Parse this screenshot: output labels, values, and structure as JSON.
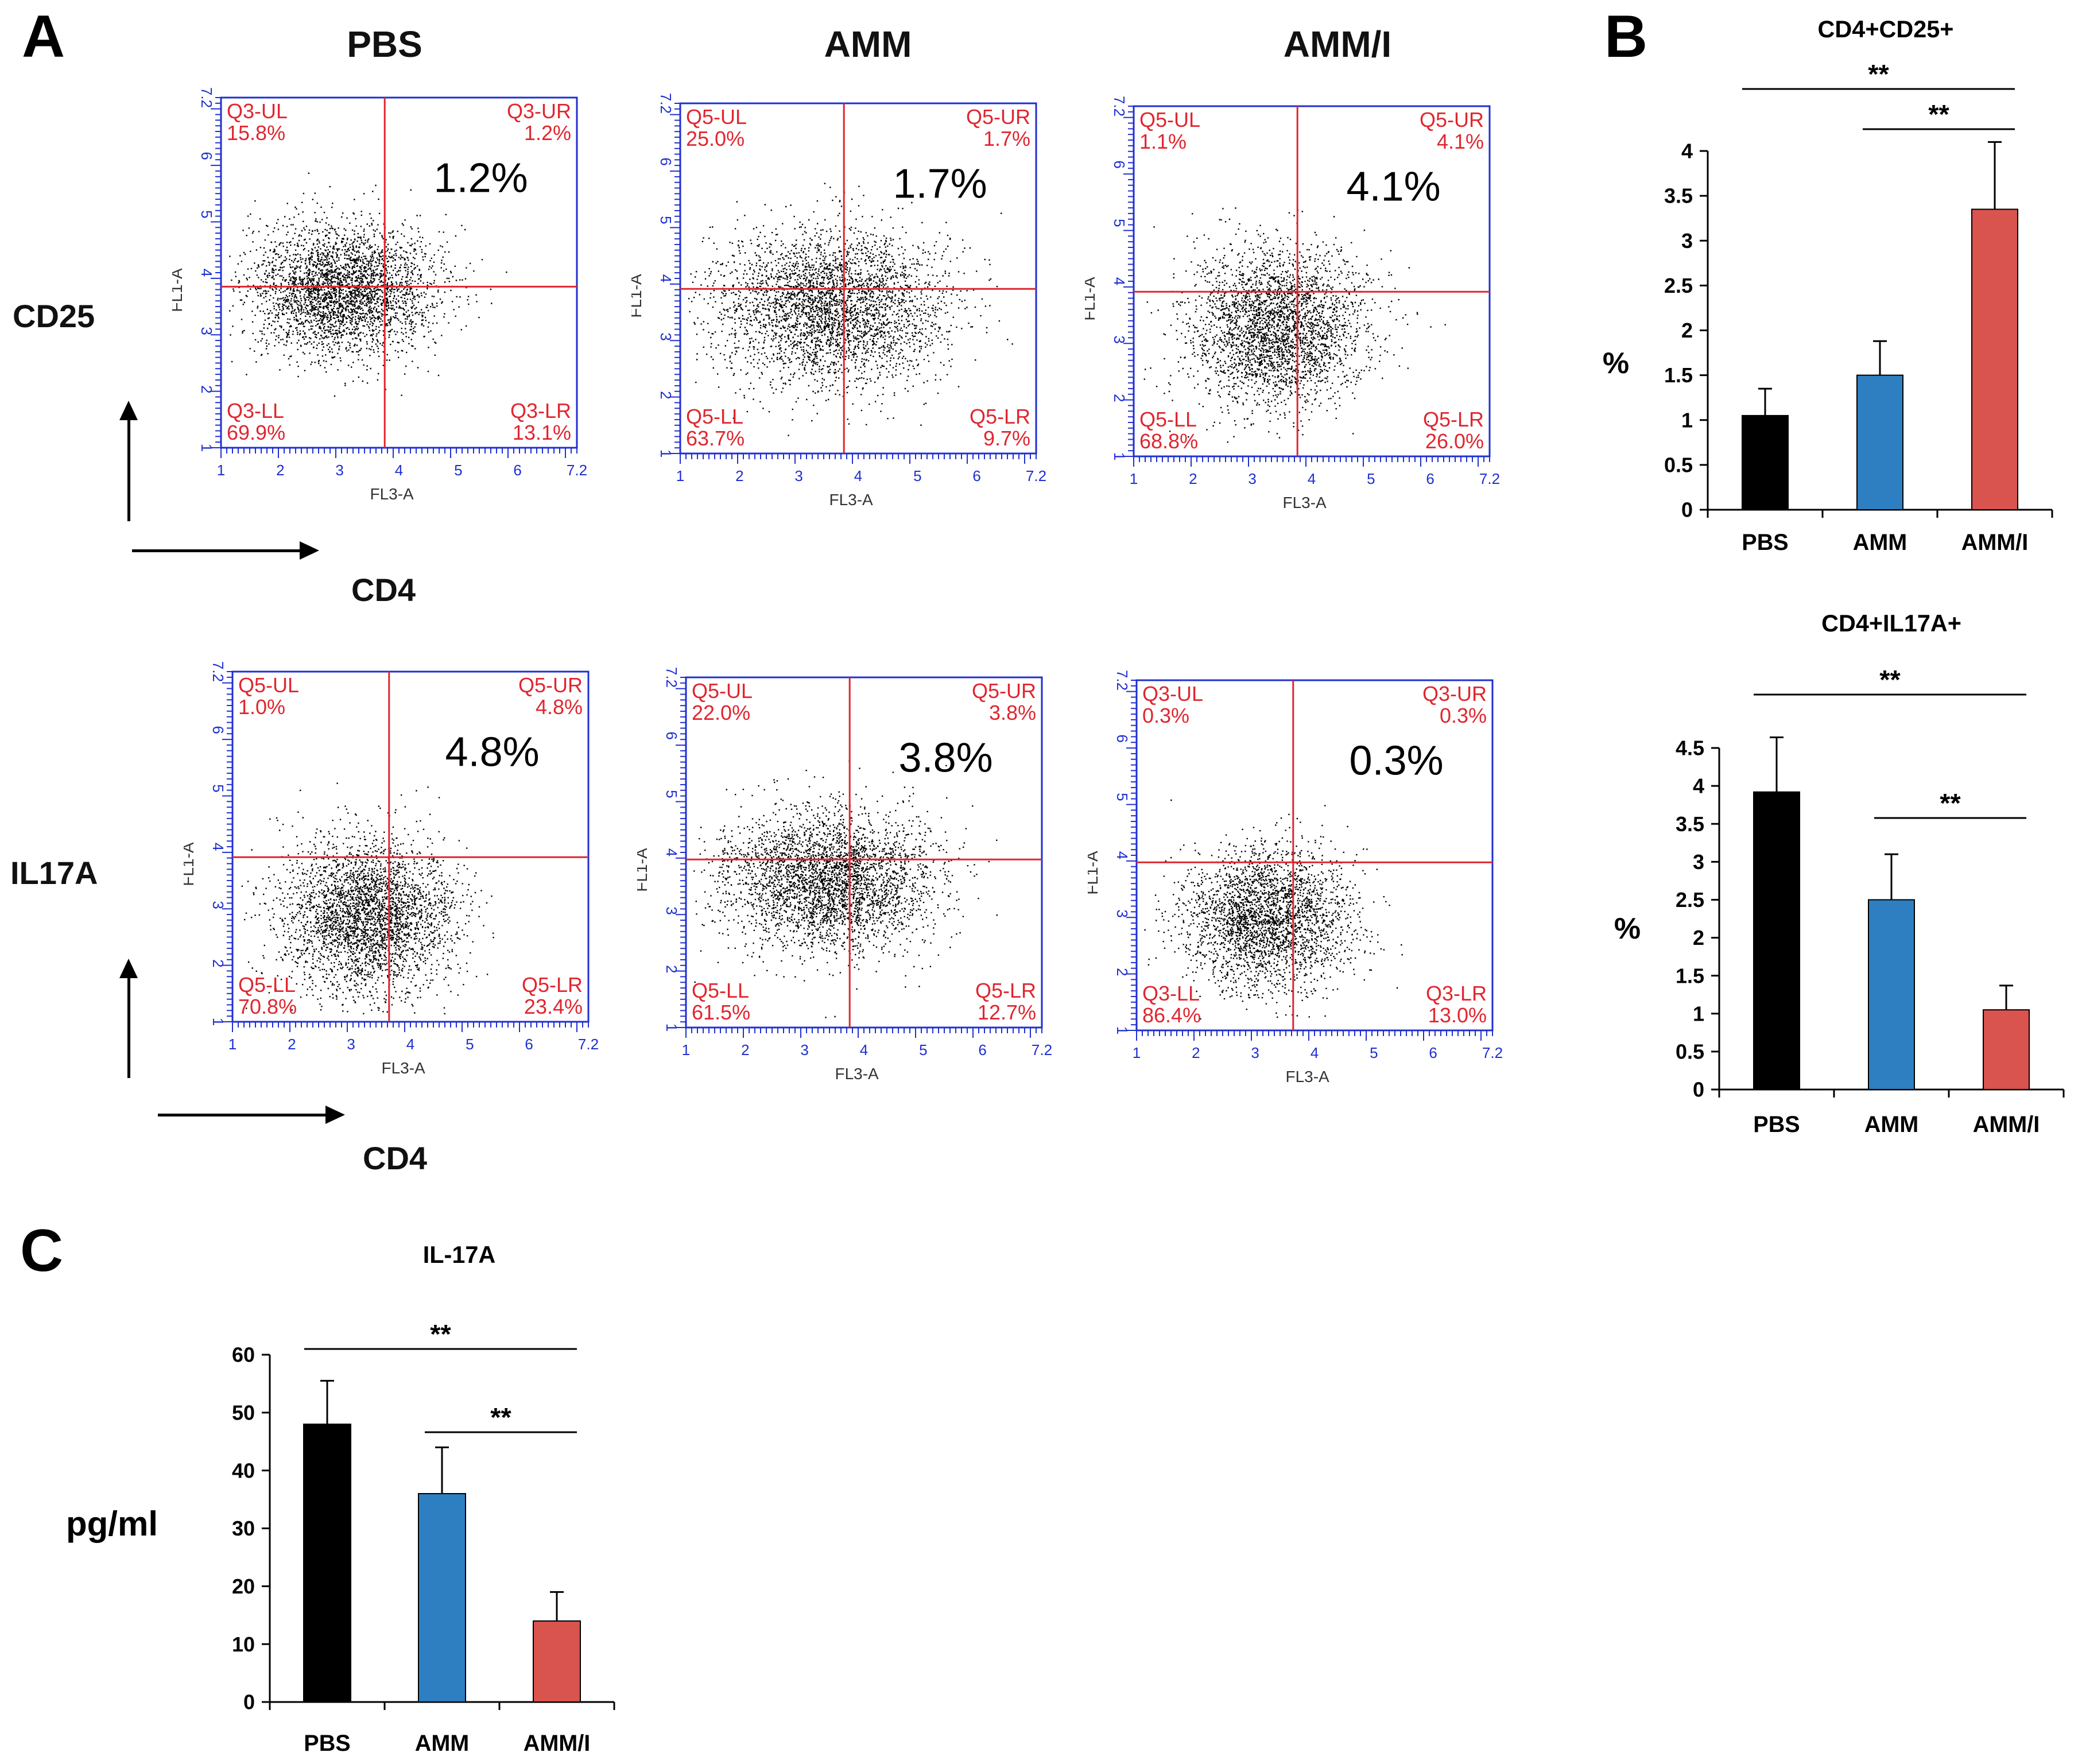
{
  "figure": {
    "panel_a": "A",
    "panel_b": "B",
    "panel_c": "C",
    "column_labels": [
      "PBS",
      "AMM",
      "AMM/I"
    ],
    "row_labels": [
      "CD25",
      "IL17A"
    ],
    "x_marker": "CD4"
  },
  "colors": {
    "pbs": "#000000",
    "amm": "#2e7fc1",
    "ammi": "#d9534f",
    "flow_axis": "#1f2fd0",
    "flow_text": "#e0262f",
    "gate_line": "#e0262f"
  },
  "flow_panels": [
    {
      "group": "PBS",
      "marker": "CD25",
      "quadrants": [
        [
          "Q3-UL",
          "15.8%"
        ],
        [
          "Q3-UR",
          "1.2%"
        ],
        [
          "Q3-LL",
          "69.9%"
        ],
        [
          "Q3-LR",
          "13.1%"
        ]
      ],
      "big": "1.2%",
      "xlabel": "FL3-A",
      "ylabel": "FL1-A",
      "ticks": [
        "1",
        "2",
        "3",
        "4",
        "5",
        "6",
        "7.2"
      ]
    },
    {
      "group": "AMM",
      "marker": "CD25",
      "quadrants": [
        [
          "Q5-UL",
          "25.0%"
        ],
        [
          "Q5-UR",
          "1.7%"
        ],
        [
          "Q5-LL",
          "63.7%"
        ],
        [
          "Q5-LR",
          "9.7%"
        ]
      ],
      "big": "1.7%",
      "xlabel": "FL3-A",
      "ylabel": "FL1-A",
      "ticks": [
        "1",
        "2",
        "3",
        "4",
        "5",
        "6",
        "7.2"
      ]
    },
    {
      "group": "AMM/I",
      "marker": "CD25",
      "quadrants": [
        [
          "Q5-UL",
          "1.1%"
        ],
        [
          "Q5-UR",
          "4.1%"
        ],
        [
          "Q5-LL",
          "68.8%"
        ],
        [
          "Q5-LR",
          "26.0%"
        ]
      ],
      "big": "4.1%",
      "xlabel": "FL3-A",
      "ylabel": "FL1-A",
      "ticks": [
        "1",
        "2",
        "3",
        "4",
        "5",
        "6",
        "7.2"
      ]
    },
    {
      "group": "PBS",
      "marker": "IL17A",
      "quadrants": [
        [
          "Q5-UL",
          "1.0%"
        ],
        [
          "Q5-UR",
          "4.8%"
        ],
        [
          "Q5-LL",
          "70.8%"
        ],
        [
          "Q5-LR",
          "23.4%"
        ]
      ],
      "big": "4.8%",
      "xlabel": "FL3-A",
      "ylabel": "FL1-A",
      "ticks": [
        "1",
        "2",
        "3",
        "4",
        "5",
        "6",
        "7.2"
      ]
    },
    {
      "group": "AMM",
      "marker": "IL17A",
      "quadrants": [
        [
          "Q5-UL",
          "22.0%"
        ],
        [
          "Q5-UR",
          "3.8%"
        ],
        [
          "Q5-LL",
          "61.5%"
        ],
        [
          "Q5-LR",
          "12.7%"
        ]
      ],
      "big": "3.8%",
      "xlabel": "FL3-A",
      "ylabel": "FL1-A",
      "ticks": [
        "1",
        "2",
        "3",
        "4",
        "5",
        "6",
        "7.2"
      ]
    },
    {
      "group": "AMM/I",
      "marker": "IL17A",
      "quadrants": [
        [
          "Q3-UL",
          "0.3%"
        ],
        [
          "Q3-UR",
          "0.3%"
        ],
        [
          "Q3-LL",
          "86.4%"
        ],
        [
          "Q3-LR",
          "13.0%"
        ]
      ],
      "big": "0.3%",
      "xlabel": "FL3-A",
      "ylabel": "FL1-A",
      "ticks": [
        "1",
        "2",
        "3",
        "4",
        "5",
        "6",
        "7.2"
      ]
    }
  ],
  "chart_data": [
    {
      "type": "bar",
      "title": "CD4+CD25+",
      "categories": [
        "PBS",
        "AMM",
        "AMM/I"
      ],
      "values": [
        1.05,
        1.5,
        3.35
      ],
      "errors": [
        0.3,
        0.38,
        0.75
      ],
      "ylabel": "%",
      "ylim": [
        0,
        4
      ],
      "yticks": [
        "0",
        "0.5",
        "1",
        "1.5",
        "2",
        "2.5",
        "3",
        "3.5",
        "4"
      ],
      "significance": [
        {
          "from": 0,
          "to": 2,
          "label": "**"
        },
        {
          "from": 1,
          "to": 2,
          "label": "**"
        }
      ]
    },
    {
      "type": "bar",
      "title": "CD4+IL17A+",
      "categories": [
        "PBS",
        "AMM",
        "AMM/I"
      ],
      "values": [
        3.92,
        2.5,
        1.05
      ],
      "errors": [
        0.72,
        0.6,
        0.32
      ],
      "ylabel": "%",
      "ylim": [
        0,
        4.5
      ],
      "yticks": [
        "0",
        "0.5",
        "1",
        "1.5",
        "2",
        "2.5",
        "3",
        "3.5",
        "4",
        "4.5"
      ],
      "significance": [
        {
          "from": 0,
          "to": 2,
          "label": "**"
        },
        {
          "from": 1,
          "to": 2,
          "label": "**"
        }
      ]
    },
    {
      "type": "bar",
      "title": "IL-17A",
      "categories": [
        "PBS",
        "AMM",
        "AMM/I"
      ],
      "values": [
        48,
        36,
        14
      ],
      "errors": [
        7.5,
        8,
        5
      ],
      "ylabel": "pg/ml",
      "ylim": [
        0,
        60
      ],
      "yticks": [
        "0",
        "10",
        "20",
        "30",
        "40",
        "50",
        "60"
      ],
      "significance": [
        {
          "from": 0,
          "to": 2,
          "label": "**"
        },
        {
          "from": 1,
          "to": 2,
          "label": "**"
        }
      ]
    }
  ]
}
